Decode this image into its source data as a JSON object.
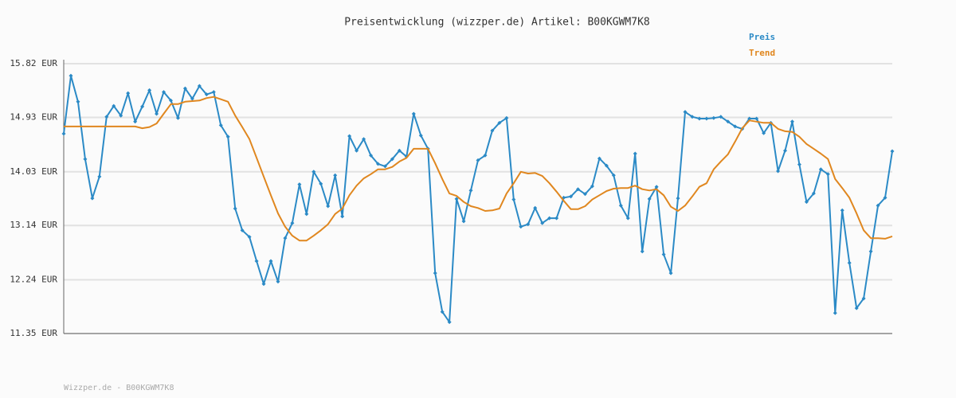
{
  "chart_data": {
    "type": "line",
    "title": "Preisentwicklung (wizzper.de) Artikel: B00KGWM7K8",
    "ylim": [
      11.35,
      15.82
    ],
    "yticks": [
      {
        "value": 11.35,
        "label": "11.35 EUR"
      },
      {
        "value": 12.24,
        "label": "12.24 EUR"
      },
      {
        "value": 13.14,
        "label": "13.14 EUR"
      },
      {
        "value": 14.03,
        "label": "14.03 EUR"
      },
      {
        "value": 14.93,
        "label": "14.93 EUR"
      },
      {
        "value": 15.82,
        "label": "15.82 EUR"
      }
    ],
    "grid": true,
    "legend": "top-right",
    "series": [
      {
        "name": "Preis",
        "color": "#2b8ac6",
        "markers": true,
        "values": [
          14.66,
          15.62,
          15.19,
          14.24,
          13.59,
          13.95,
          14.94,
          15.12,
          14.96,
          15.33,
          14.86,
          15.11,
          15.38,
          14.99,
          15.35,
          15.21,
          14.92,
          15.41,
          15.24,
          15.45,
          15.31,
          15.35,
          14.8,
          14.61,
          13.42,
          13.06,
          12.95,
          12.55,
          12.17,
          12.55,
          12.21,
          12.93,
          13.18,
          13.82,
          13.33,
          14.03,
          13.83,
          13.46,
          13.97,
          13.29,
          14.62,
          14.38,
          14.57,
          14.3,
          14.16,
          14.12,
          14.24,
          14.38,
          14.28,
          14.99,
          14.63,
          14.41,
          12.35,
          11.71,
          11.54,
          13.58,
          13.21,
          13.72,
          14.22,
          14.3,
          14.71,
          14.84,
          14.92,
          13.57,
          13.12,
          13.16,
          13.43,
          13.18,
          13.26,
          13.26,
          13.6,
          13.62,
          13.74,
          13.66,
          13.79,
          14.25,
          14.13,
          13.97,
          13.47,
          13.26,
          14.33,
          12.71,
          13.58,
          13.78,
          12.66,
          12.35,
          13.59,
          15.02,
          14.94,
          14.91,
          14.91,
          14.92,
          14.94,
          14.86,
          14.78,
          14.74,
          14.91,
          14.91,
          14.67,
          14.84,
          14.04,
          14.38,
          14.86,
          14.15,
          13.53,
          13.67,
          14.07,
          13.99,
          11.69,
          13.39,
          12.52,
          11.77,
          11.93,
          12.71,
          13.47,
          13.6,
          14.37
        ]
      },
      {
        "name": "Trend",
        "color": "#e0871f",
        "markers": false,
        "values": [
          14.78,
          14.78,
          14.78,
          14.78,
          14.78,
          14.78,
          14.78,
          14.78,
          14.78,
          14.78,
          14.78,
          14.75,
          14.77,
          14.83,
          14.99,
          15.15,
          15.15,
          15.19,
          15.2,
          15.21,
          15.25,
          15.27,
          15.23,
          15.19,
          14.96,
          14.77,
          14.57,
          14.26,
          13.95,
          13.64,
          13.34,
          13.12,
          12.97,
          12.89,
          12.89,
          12.97,
          13.06,
          13.16,
          13.33,
          13.42,
          13.64,
          13.8,
          13.92,
          13.99,
          14.07,
          14.07,
          14.11,
          14.2,
          14.26,
          14.41,
          14.41,
          14.41,
          14.17,
          13.91,
          13.67,
          13.63,
          13.53,
          13.46,
          13.43,
          13.38,
          13.39,
          13.42,
          13.67,
          13.84,
          14.03,
          14.0,
          14.01,
          13.96,
          13.84,
          13.7,
          13.55,
          13.41,
          13.41,
          13.46,
          13.57,
          13.64,
          13.71,
          13.75,
          13.76,
          13.76,
          13.8,
          13.74,
          13.72,
          13.74,
          13.64,
          13.45,
          13.38,
          13.47,
          13.62,
          13.78,
          13.84,
          14.07,
          14.2,
          14.32,
          14.53,
          14.75,
          14.88,
          14.86,
          14.84,
          14.84,
          14.74,
          14.7,
          14.69,
          14.61,
          14.49,
          14.41,
          14.33,
          14.24,
          13.91,
          13.76,
          13.6,
          13.34,
          13.06,
          12.93,
          12.93,
          12.92,
          12.96
        ]
      }
    ],
    "footer": "Wizzper.de - B00KGWM7K8"
  }
}
